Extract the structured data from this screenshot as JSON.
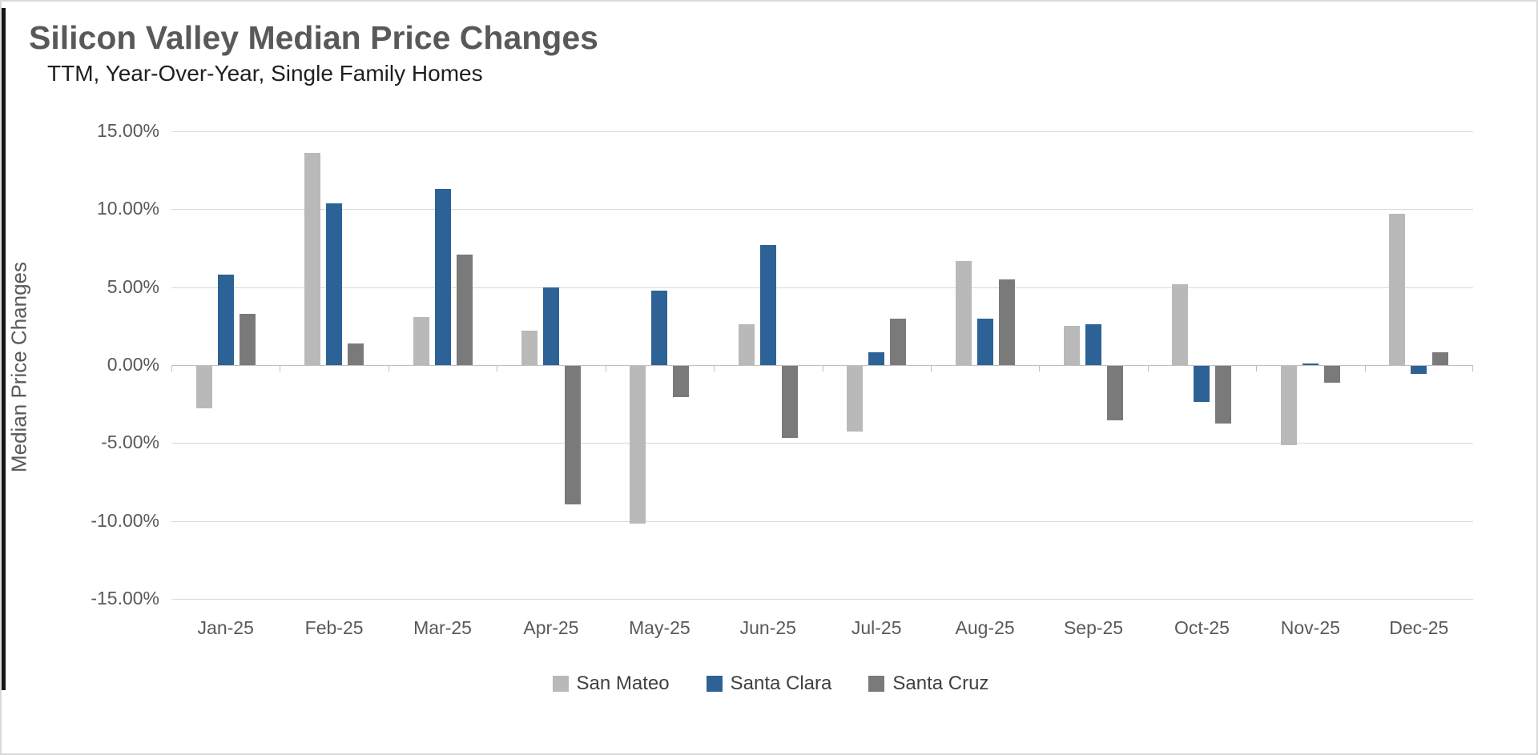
{
  "title": "Silicon Valley Median Price Changes",
  "subtitle": "TTM, Year-Over-Year, Single Family Homes",
  "chart_data": {
    "type": "bar",
    "title": "Silicon Valley Median Price Changes",
    "subtitle": "TTM, Year-Over-Year, Single Family Homes",
    "xlabel": "",
    "ylabel": "Median Price Changes",
    "ylim": [
      -15,
      15
    ],
    "ytick_step": 5,
    "ytick_labels": [
      "15.00%",
      "10.00%",
      "5.00%",
      "0.00%",
      "-5.00%",
      "-10.00%",
      "-15.00%"
    ],
    "grid": true,
    "legend_position": "bottom",
    "categories": [
      "Jan-25",
      "Feb-25",
      "Mar-25",
      "Apr-25",
      "May-25",
      "Jun-25",
      "Jul-25",
      "Aug-25",
      "Sep-25",
      "Oct-25",
      "Nov-25",
      "Dec-25"
    ],
    "series": [
      {
        "name": "San Mateo",
        "color": "#b9b9b9",
        "values": [
          -2.7,
          13.6,
          3.1,
          2.2,
          -10.1,
          2.6,
          -4.2,
          6.7,
          2.5,
          5.2,
          -5.1,
          9.7
        ]
      },
      {
        "name": "Santa Clara",
        "color": "#2d6296",
        "values": [
          5.8,
          10.4,
          11.3,
          5.0,
          4.8,
          7.7,
          0.8,
          3.0,
          2.6,
          -2.3,
          0.1,
          -0.5
        ]
      },
      {
        "name": "Santa Cruz",
        "color": "#7a7a7a",
        "values": [
          3.3,
          1.4,
          7.1,
          -8.9,
          -2.0,
          -4.6,
          3.0,
          5.5,
          -3.5,
          -3.7,
          -1.1,
          0.8
        ]
      }
    ]
  },
  "colors": {
    "gridline": "#d9d9d9",
    "axis_line": "#bfbfbf",
    "axis_text": "#595959",
    "title_text": "#595959",
    "subtitle_text": "#1f1f1f"
  }
}
